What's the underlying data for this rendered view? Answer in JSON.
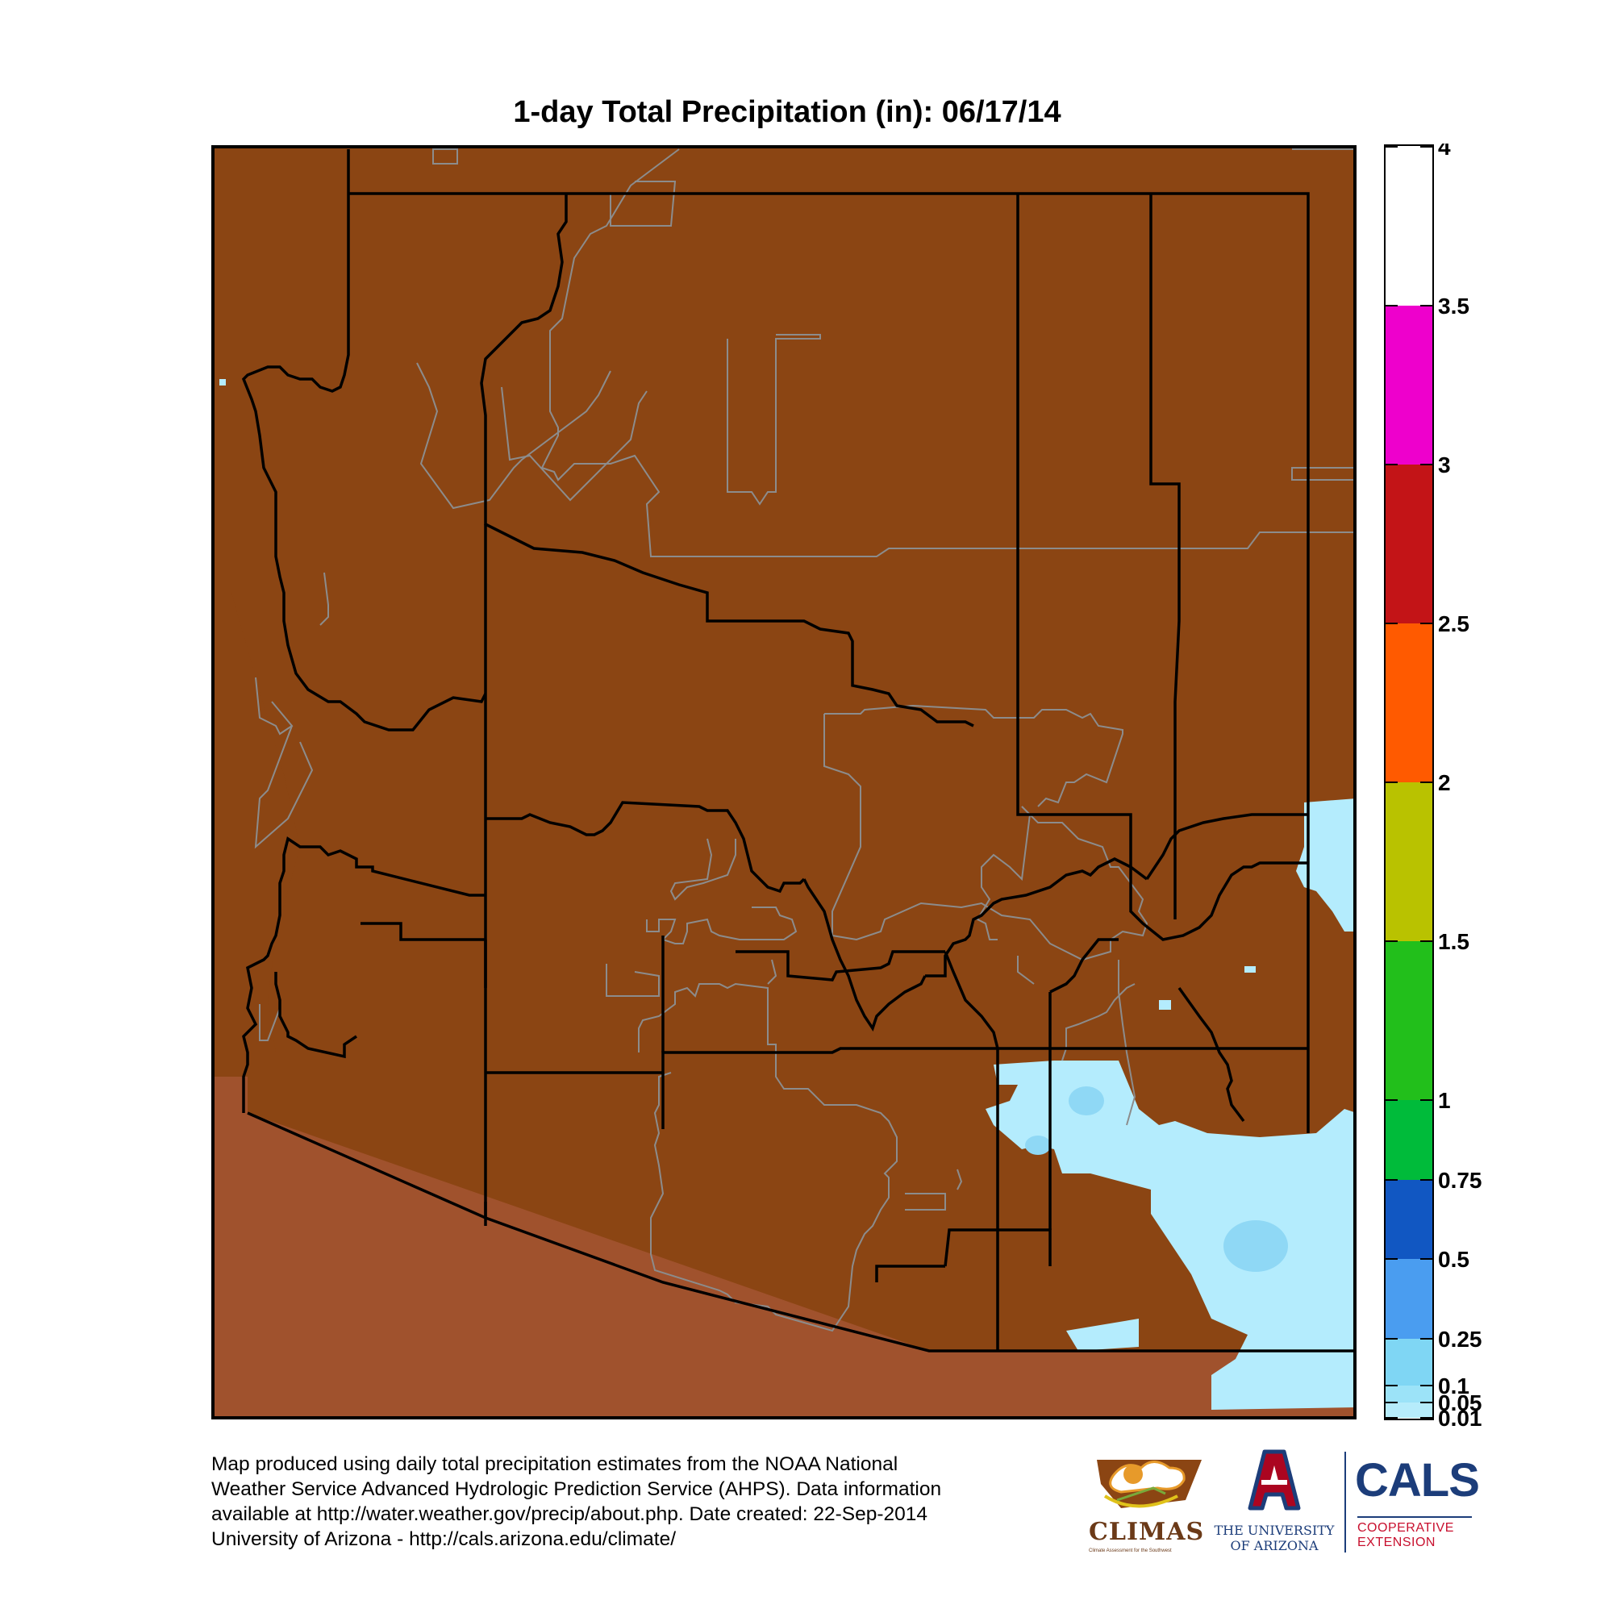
{
  "title": "1-day Total Precipitation (in): 06/17/14",
  "legend": {
    "labels": [
      {
        "value": 4,
        "text": "4"
      },
      {
        "value": 3.5,
        "text": "3.5"
      },
      {
        "value": 3,
        "text": "3"
      },
      {
        "value": 2.5,
        "text": "2.5"
      },
      {
        "value": 2,
        "text": "2"
      },
      {
        "value": 1.5,
        "text": "1.5"
      },
      {
        "value": 1,
        "text": "1"
      },
      {
        "value": 0.75,
        "text": "0.75"
      },
      {
        "value": 0.5,
        "text": "0.5"
      },
      {
        "value": 0.25,
        "text": "0.25"
      },
      {
        "value": 0.1,
        "text": "0.1"
      },
      {
        "value": 0.05,
        "text": "0.05"
      },
      {
        "value": 0.01,
        "text": "0.01"
      }
    ],
    "bands": [
      {
        "from": 3.5,
        "to": 4,
        "color": "#ffffff"
      },
      {
        "from": 3,
        "to": 3.5,
        "color": "#ee00cc"
      },
      {
        "from": 2.5,
        "to": 3,
        "color": "#c31417"
      },
      {
        "from": 2,
        "to": 2.5,
        "color": "#ff5a00"
      },
      {
        "from": 1.5,
        "to": 2,
        "color": "#b9c200"
      },
      {
        "from": 1,
        "to": 1.5,
        "color": "#22bf1b"
      },
      {
        "from": 0.75,
        "to": 1,
        "color": "#00bb3a"
      },
      {
        "from": 0.5,
        "to": 0.75,
        "color": "#1157c2"
      },
      {
        "from": 0.25,
        "to": 0.5,
        "color": "#4a9df0"
      },
      {
        "from": 0.1,
        "to": 0.25,
        "color": "#7fd6f4"
      },
      {
        "from": 0.05,
        "to": 0.1,
        "color": "#9ce3f8"
      },
      {
        "from": 0.01,
        "to": 0.05,
        "color": "#b6ecfb"
      }
    ]
  },
  "colors": {
    "dry_land": "#8b4513",
    "outside_region": "#a0522d",
    "light_precip": "#b4ecfd",
    "moderate_precip": "#8fd8f5",
    "county_border": "#000000",
    "reservation_border": "#8c8c8c"
  },
  "footer": {
    "lines": [
      "Map produced using daily total precipitation estimates from the NOAA National",
      "Weather Service Advanced Hydrologic Prediction Service (AHPS). Data information",
      "available at http://water.weather.gov/precip/about.php. Date created: 22-Sep-2014",
      "University of Arizona - http://cals.arizona.edu/climate/"
    ]
  },
  "logos": {
    "climas": {
      "name": "CLIMAS",
      "subtitle": "Climate Assessment for the Southwest"
    },
    "ua": {
      "line1": "THE UNIVERSITY",
      "line2": "OF ARIZONA"
    },
    "cals": {
      "name": "CALS",
      "line1": "COOPERATIVE",
      "line2": "EXTENSION"
    }
  }
}
